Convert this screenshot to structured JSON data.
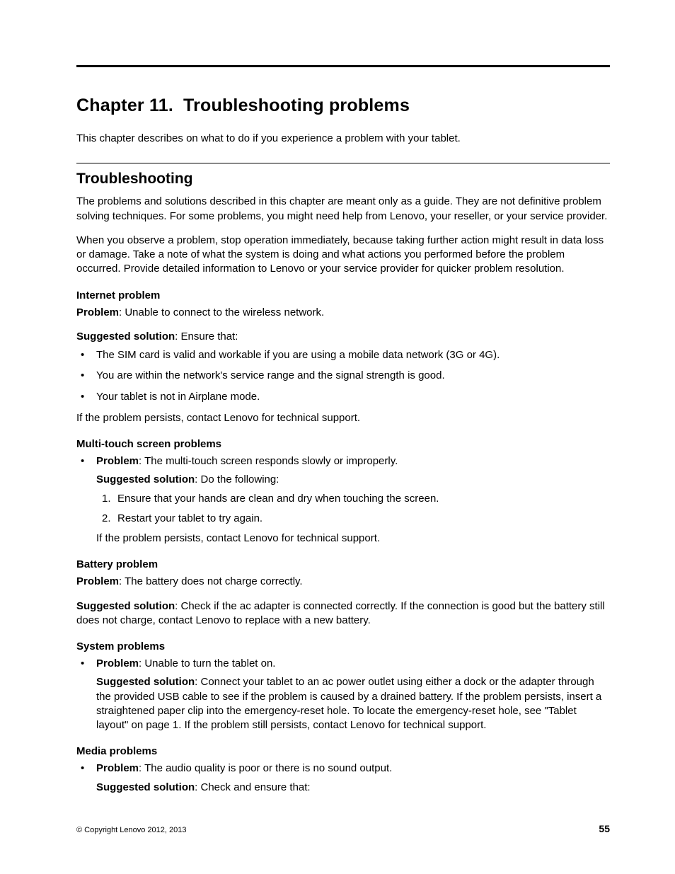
{
  "chapter_title_a": "Chapter 11.",
  "chapter_title_b": "Troubleshooting problems",
  "intro": "This chapter describes on what to do if you experience a problem with your tablet.",
  "section_title": "Troubleshooting",
  "para1": "The problems and solutions described in this chapter are meant only as a guide. They are not definitive problem solving techniques. For some problems, you might need help from Lenovo, your reseller, or your service provider.",
  "para2": "When you observe a problem, stop operation immediately, because taking further action might result in data loss or damage. Take a note of what the system is doing and what actions you performed before the problem occurred. Provide detailed information to Lenovo or your service provider for quicker problem resolution.",
  "internet": {
    "heading": "Internet problem",
    "problem_label": "Problem",
    "problem_text": ": Unable to connect to the wireless network.",
    "solution_label": "Suggested solution",
    "solution_text": ": Ensure that:",
    "bullets": [
      "The SIM card is valid and workable if you are using a mobile data network (3G or 4G).",
      "You are within the network's service range and the signal strength is good.",
      "Your tablet is not in Airplane mode."
    ],
    "closing": "If the problem persists, contact Lenovo for technical support."
  },
  "multitouch": {
    "heading": "Multi-touch screen problems",
    "problem_label": "Problem",
    "problem_text": ": The multi-touch screen responds slowly or improperly.",
    "solution_label": "Suggested solution",
    "solution_text": ": Do the following:",
    "steps": [
      "Ensure that your hands are clean and dry when touching the screen.",
      "Restart your tablet to try again."
    ],
    "closing": "If the problem persists, contact Lenovo for technical support."
  },
  "battery": {
    "heading": "Battery problem",
    "problem_label": "Problem",
    "problem_text": ": The battery does not charge correctly.",
    "solution_label": "Suggested solution",
    "solution_text": ": Check if the ac adapter is connected correctly. If the connection is good but the battery still does not charge, contact Lenovo to replace with a new battery."
  },
  "system": {
    "heading": "System problems",
    "problem_label": "Problem",
    "problem_text": ": Unable to turn the tablet on.",
    "solution_label": "Suggested solution",
    "solution_text": ": Connect your tablet to an ac power outlet using either a dock or the adapter through the provided USB cable to see if the problem is caused by a drained battery. If the problem persists, insert a straightened paper clip into the emergency-reset hole. To locate the emergency-reset hole, see \"Tablet layout\" on page 1. If the problem still persists, contact Lenovo for technical support."
  },
  "media": {
    "heading": "Media problems",
    "problem_label": "Problem",
    "problem_text": ": The audio quality is poor or there is no sound output.",
    "solution_label": "Suggested solution",
    "solution_text": ": Check and ensure that:"
  },
  "footer": {
    "copyright": "© Copyright Lenovo 2012, 2013",
    "page": "55"
  }
}
